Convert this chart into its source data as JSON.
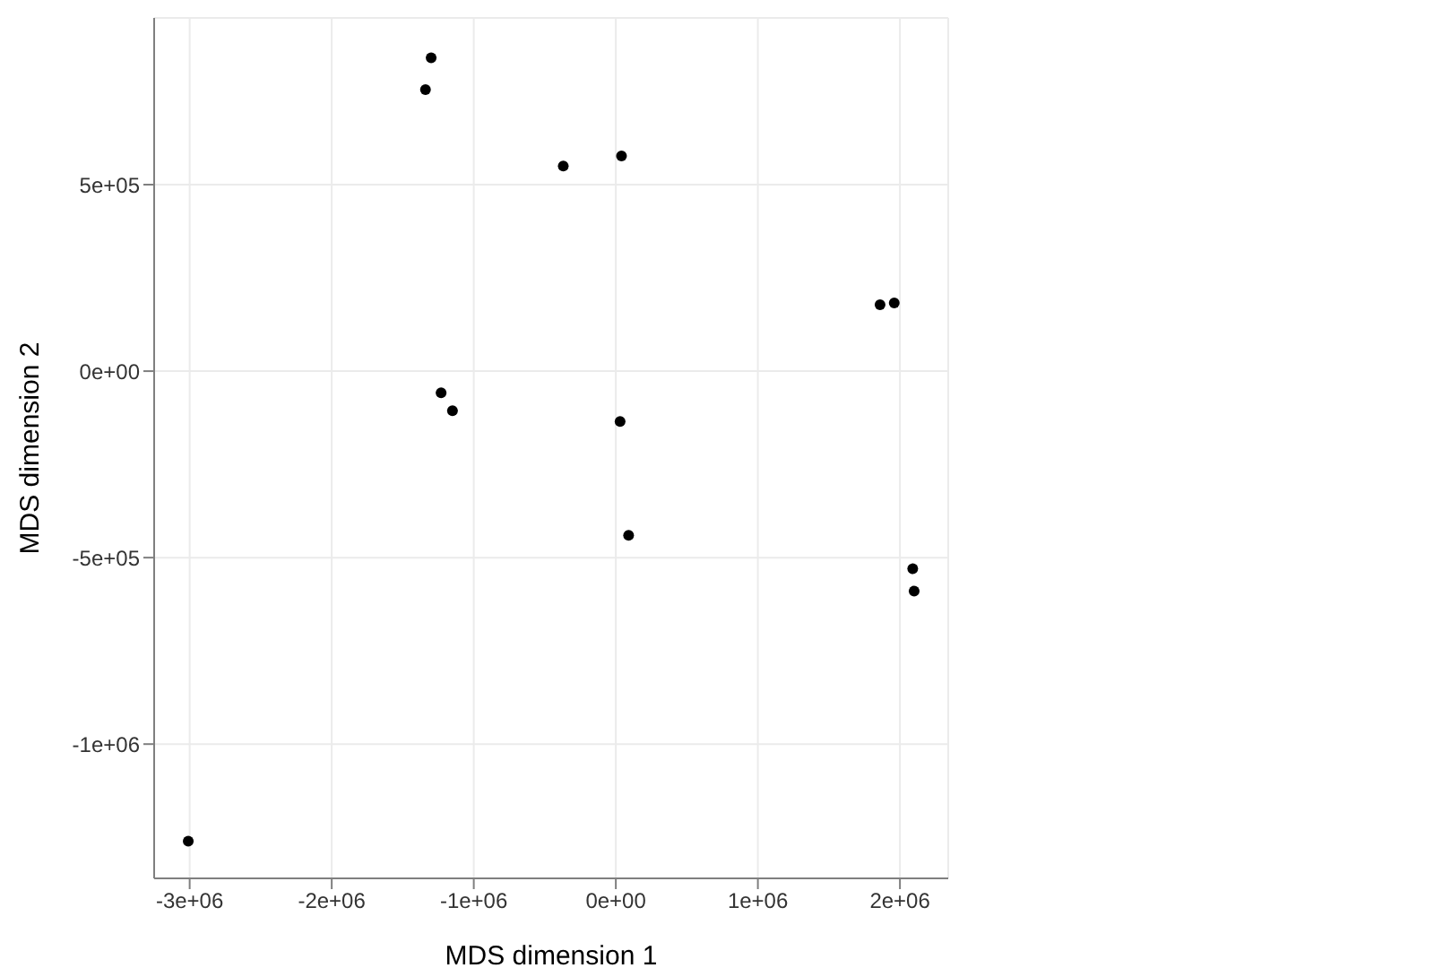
{
  "chart_data": {
    "type": "scatter",
    "xlabel": "MDS dimension 1",
    "ylabel": "MDS dimension 2",
    "x": [
      -1300000,
      -1340000,
      -370000,
      40000,
      1860000,
      1960000,
      -1230000,
      -1150000,
      30000,
      90000,
      2090000,
      2100000,
      -3010000
    ],
    "values": [
      840000,
      755000,
      550000,
      577000,
      178000,
      183000,
      -58000,
      -106000,
      -135000,
      -440000,
      -530000,
      -590000,
      -1260000
    ],
    "color": "#000000",
    "marker": "circle",
    "grid": true,
    "xlim": [
      -3250000,
      2340000
    ],
    "xticks": [
      {
        "value": -3000000,
        "label": "-3e+06"
      },
      {
        "value": -2000000,
        "label": "-2e+06"
      },
      {
        "value": -1000000,
        "label": "-1e+06"
      },
      {
        "value": 0,
        "label": "0e+00"
      },
      {
        "value": 1000000,
        "label": "1e+06"
      },
      {
        "value": 2000000,
        "label": "2e+06"
      }
    ],
    "ylim": [
      -1360000,
      947000
    ],
    "yticks": [
      {
        "value": -1000000,
        "label": "-1e+06"
      },
      {
        "value": -500000,
        "label": "-5e+05"
      },
      {
        "value": 0,
        "label": "0e+00"
      },
      {
        "value": 500000,
        "label": "5e+05"
      }
    ]
  }
}
